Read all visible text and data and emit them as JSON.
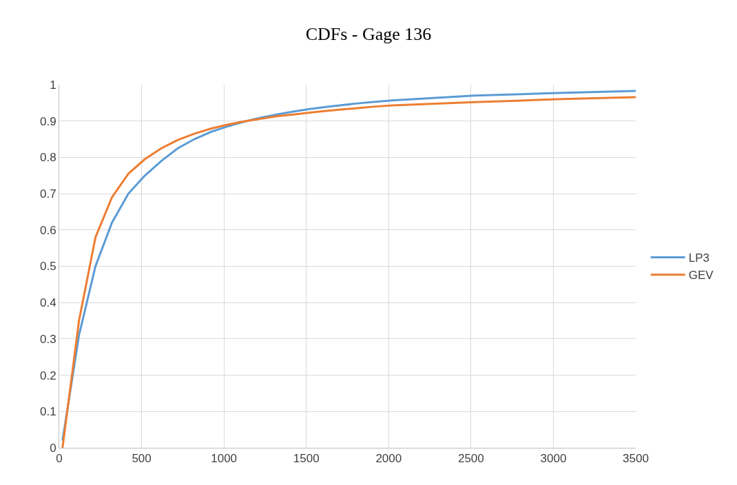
{
  "chart_data": {
    "type": "line",
    "title": "CDFs - Gage 136",
    "x": [
      20,
      120,
      220,
      320,
      420,
      520,
      620,
      720,
      820,
      920,
      1020,
      1120,
      1220,
      1320,
      1420,
      1520,
      1620,
      1720,
      1820,
      1920,
      2020,
      2520,
      3020,
      3500
    ],
    "series": [
      {
        "name": "LP3",
        "color": "#5b9bd5",
        "values": [
          0.02,
          0.31,
          0.5,
          0.62,
          0.7,
          0.75,
          0.79,
          0.825,
          0.85,
          0.87,
          0.885,
          0.898,
          0.909,
          0.918,
          0.926,
          0.933,
          0.939,
          0.944,
          0.949,
          0.953,
          0.957,
          0.97,
          0.977,
          0.983
        ]
      },
      {
        "name": "GEV",
        "color": "#ed7d31",
        "values": [
          0.0,
          0.35,
          0.58,
          0.69,
          0.755,
          0.795,
          0.825,
          0.848,
          0.865,
          0.879,
          0.89,
          0.899,
          0.906,
          0.913,
          0.918,
          0.923,
          0.928,
          0.932,
          0.936,
          0.94,
          0.943,
          0.952,
          0.96,
          0.966
        ]
      }
    ],
    "xlim": [
      0,
      3500
    ],
    "xticks": [
      0,
      500,
      1000,
      1500,
      2000,
      2500,
      3000,
      3500
    ],
    "ylim": [
      0,
      1
    ],
    "yticks": [
      0,
      0.1,
      0.2,
      0.3,
      0.4,
      0.5,
      0.6,
      0.7,
      0.8,
      0.9,
      1
    ],
    "grid": true,
    "legend": "right",
    "marker": "none",
    "line_style": "solid"
  }
}
